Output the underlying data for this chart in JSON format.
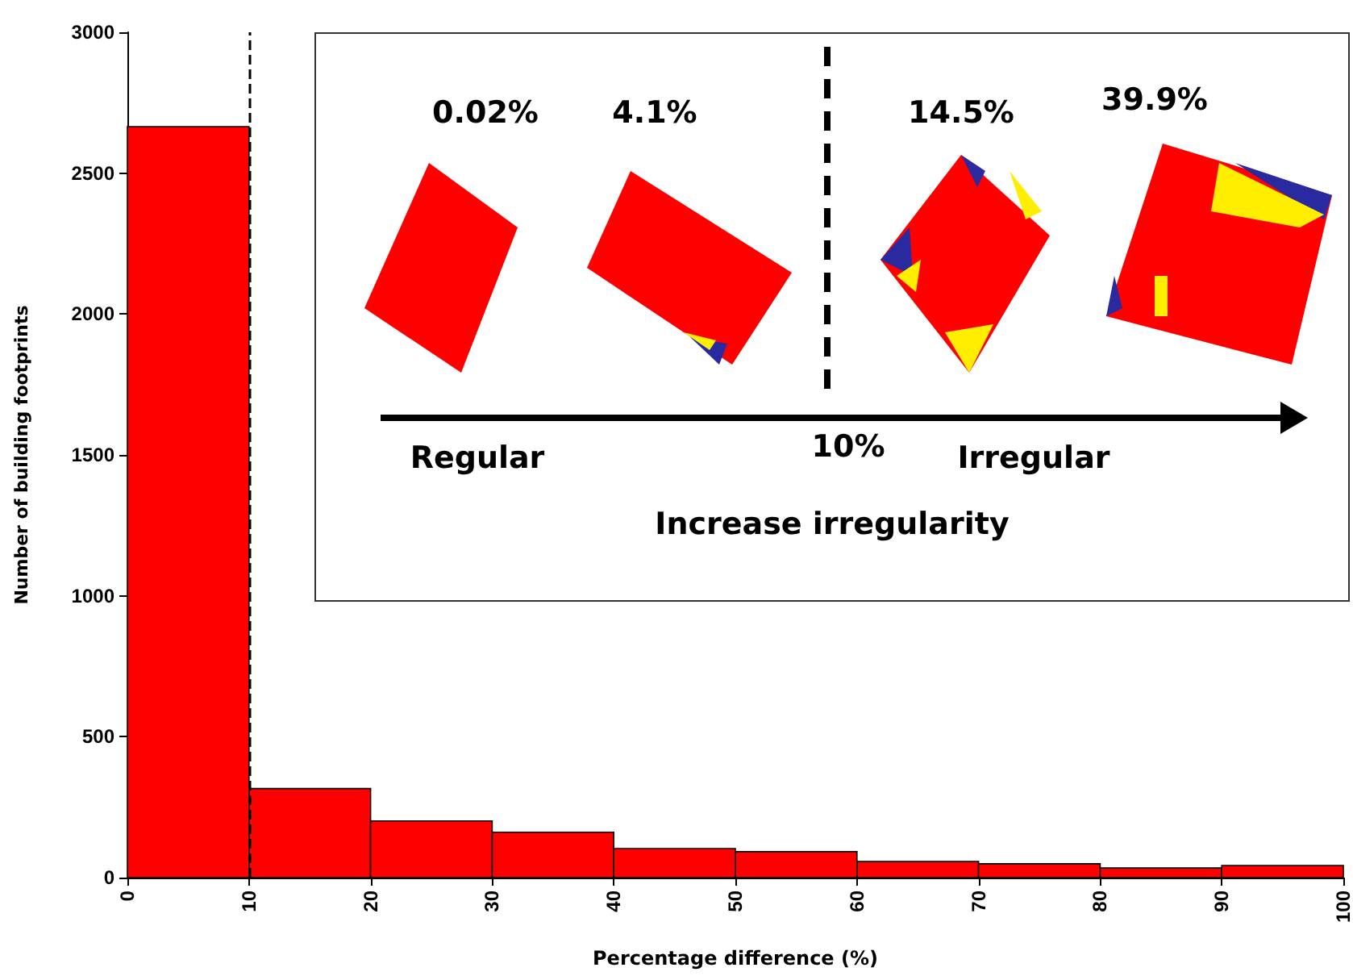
{
  "chart_data": {
    "type": "histogram",
    "xlabel": "Percentage difference (%)",
    "ylabel": "Number of building footprints",
    "bins": [
      0,
      10,
      20,
      30,
      40,
      50,
      60,
      70,
      80,
      90,
      100
    ],
    "values": [
      2665,
      316,
      201,
      161,
      103,
      92,
      57,
      49,
      34,
      43
    ],
    "color": "#ff0000",
    "xlim": [
      0,
      100
    ],
    "xticks": [
      0,
      10,
      20,
      30,
      40,
      50,
      60,
      70,
      80,
      90,
      100
    ],
    "ylim": [
      0,
      3000
    ],
    "yticks": [
      0,
      500,
      1000,
      1500,
      2000,
      2500,
      3000
    ],
    "grid": false,
    "ref_lines": [
      {
        "axis": "x",
        "value": 10,
        "label": null,
        "color": "#000000",
        "line_style": "dashed"
      }
    ],
    "annotations": [
      "0.02%",
      "4.1%",
      "14.5%",
      "39.9%",
      "Regular",
      "10%",
      "Irregular",
      "Increase irregularity"
    ]
  }
}
